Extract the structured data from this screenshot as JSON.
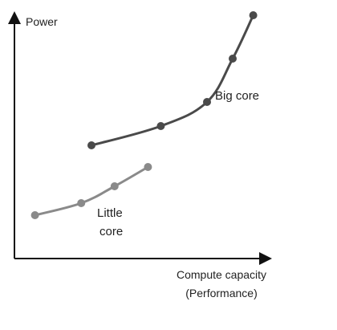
{
  "chart_data": {
    "type": "line",
    "ylabel": "Power",
    "xlabel_lines": [
      "Compute capacity",
      "(Performance)"
    ],
    "xlim": [
      0,
      100
    ],
    "ylim": [
      0,
      100
    ],
    "ticks": "none",
    "grid": false,
    "series": [
      {
        "name": "Big core",
        "color": "#4a4a4a",
        "points": [
          [
            30,
            47
          ],
          [
            57,
            55
          ],
          [
            75,
            65
          ],
          [
            85,
            83
          ],
          [
            93,
            101
          ]
        ]
      },
      {
        "name_lines": [
          "Little",
          "core"
        ],
        "color": "#8a8a8a",
        "points": [
          [
            8,
            18
          ],
          [
            26,
            23
          ],
          [
            39,
            30
          ],
          [
            52,
            38
          ]
        ]
      }
    ]
  }
}
